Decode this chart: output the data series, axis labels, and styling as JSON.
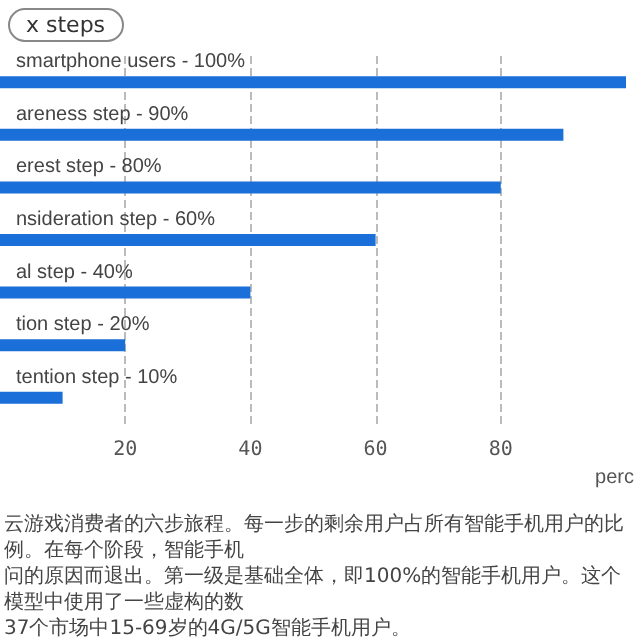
{
  "chart_data": {
    "type": "bar",
    "orientation": "horizontal",
    "title": "x steps",
    "xlabel": "perc",
    "categories": [
      "smartphone users - 100%",
      "areness step - 90%",
      "erest step - 80%",
      "nsideration step - 60%",
      "al step - 40%",
      "tion step - 20%",
      "tention step - 10%"
    ],
    "values": [
      100,
      90,
      80,
      60,
      40,
      20,
      10
    ],
    "color": "#1a6fd8",
    "xlim": [
      0,
      100
    ],
    "xticks": [
      20,
      40,
      60,
      80
    ],
    "grid": "x",
    "annotations": [
      "云游戏消费者的六步旅程。每一步的剩余用户占所有智能手机用户的比例。在每个阶段，智能手机",
      "问的原因而退出。第一级是基础全体，即100%的智能手机用户。这个模型中使用了一些虚构的数",
      "37个市场中15-69岁的4G/5G智能手机用户。"
    ]
  }
}
